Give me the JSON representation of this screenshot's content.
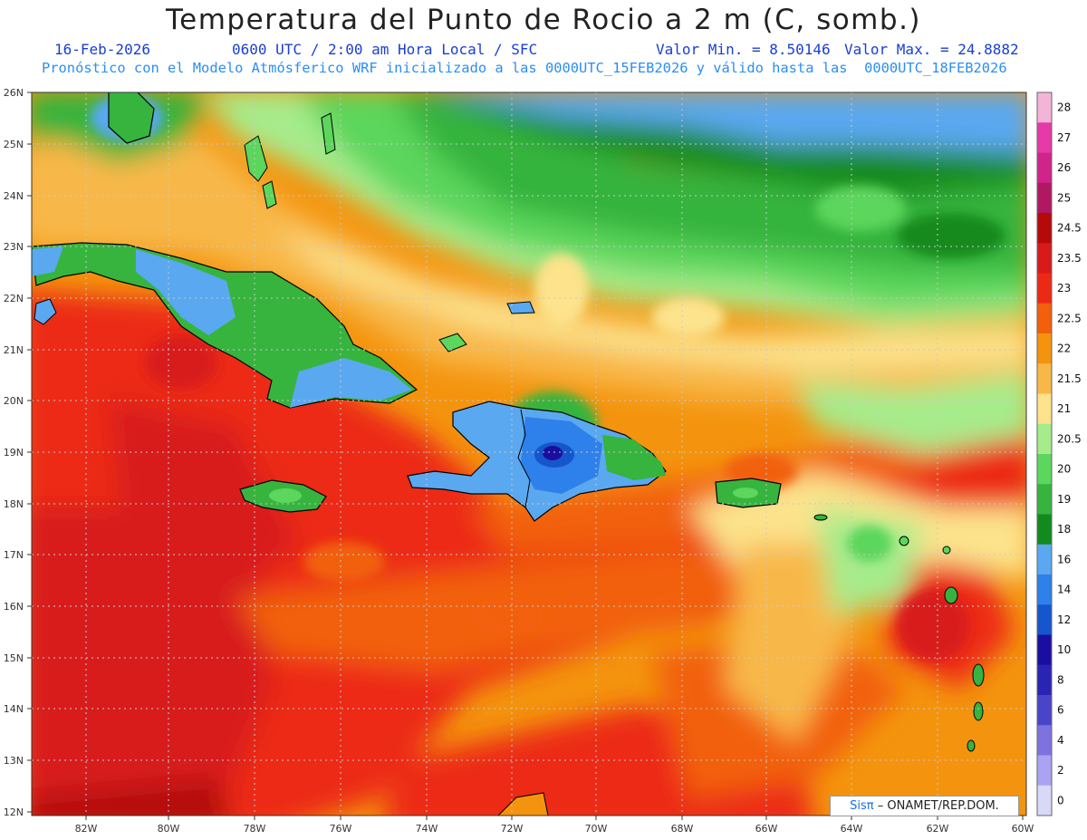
{
  "header": {
    "title": "Temperatura del Punto de Rocio a 2 m (C, somb.)",
    "date": "16-Feb-2026",
    "time_info": "0600 UTC / 2:00 am Hora Local / SFC",
    "valor_min": "Valor Min. = 8.50146",
    "valor_max": "Valor Max. = 24.8882",
    "model_info": "Pronóstico con el Modelo Atmósferico WRF inicializado a las 0000UTC_15FEB2026 y válido hasta las  0000UTC_18FEB2026"
  },
  "axes": {
    "lat_labels": [
      "26N",
      "25N",
      "24N",
      "23N",
      "22N",
      "21N",
      "20N",
      "19N",
      "18N",
      "17N",
      "16N",
      "15N",
      "14N",
      "13N",
      "12N"
    ],
    "lon_labels": [
      "82W",
      "80W",
      "78W",
      "76W",
      "74W",
      "72W",
      "70W",
      "68W",
      "66W",
      "64W",
      "62W",
      "60W"
    ]
  },
  "colorbar": {
    "levels": [
      "28",
      "27",
      "26",
      "25",
      "24.5",
      "23.5",
      "23",
      "22.5",
      "22",
      "21.5",
      "21",
      "20.5",
      "20",
      "19",
      "18",
      "16",
      "14",
      "12",
      "10",
      "8",
      "6",
      "4",
      "2",
      "0"
    ],
    "colors": [
      "#f4b4d8",
      "#e63aa8",
      "#d0248a",
      "#b01862",
      "#b40a0a",
      "#d81a1a",
      "#ec2a14",
      "#f2600c",
      "#f4940e",
      "#f8b848",
      "#fce38c",
      "#a6ec8c",
      "#5cd65c",
      "#36b43e",
      "#128a1e",
      "#5aa8f0",
      "#2e80ea",
      "#1656cc",
      "#1a0ea0",
      "#2a24b4",
      "#4a44c8",
      "#7e72e0",
      "#aca2f2",
      "#d8d8f8"
    ]
  },
  "map": {
    "land_outline_color": "#000000",
    "grid_color": "#c8c8c8"
  },
  "credit": {
    "sis": "Sisπ",
    "rest": "– ONAMET/REP.DOM."
  }
}
